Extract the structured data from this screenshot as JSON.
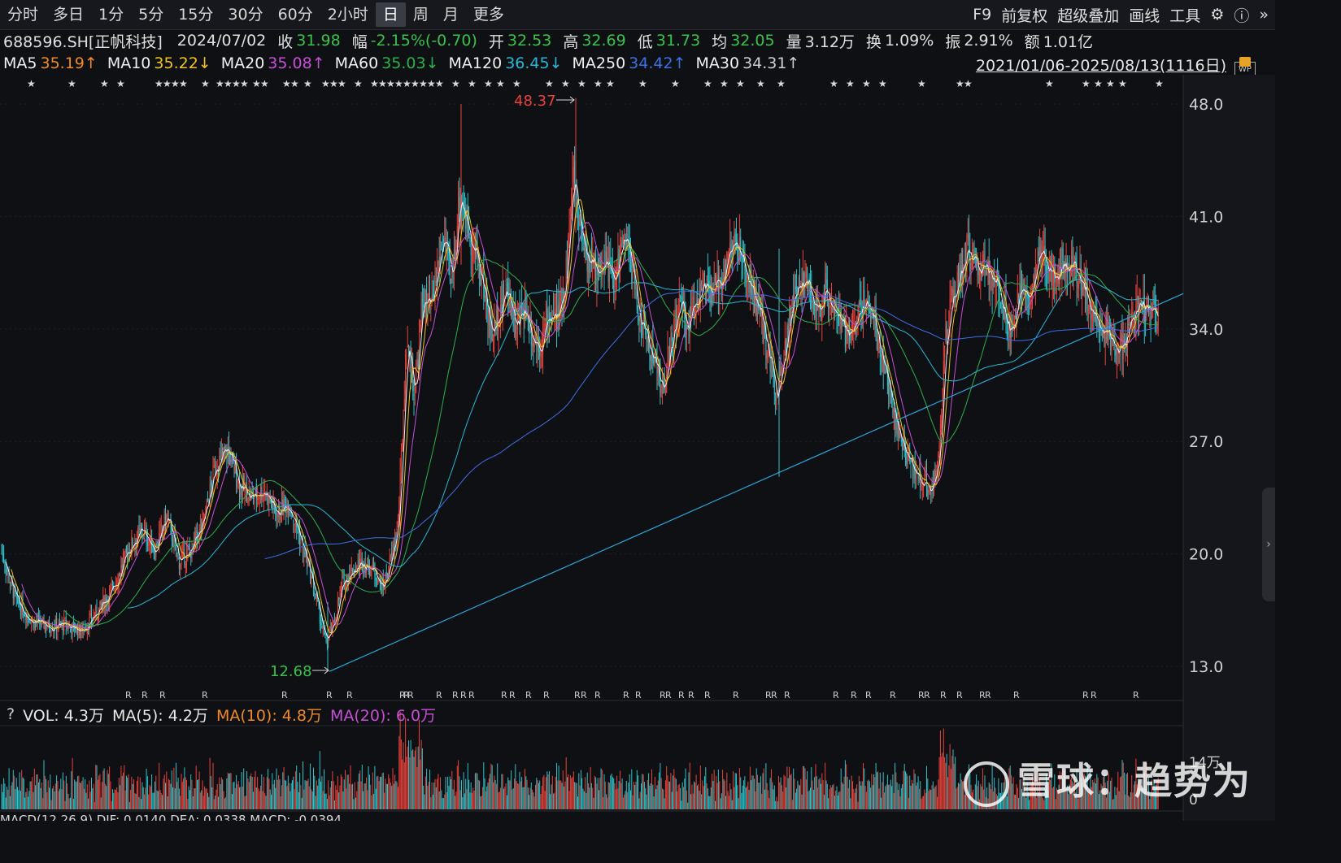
{
  "toolbar": {
    "tabs": [
      "分时",
      "多日",
      "1分",
      "5分",
      "15分",
      "30分",
      "60分",
      "2小时",
      "日",
      "周",
      "月",
      "更多"
    ],
    "active_tab": "日",
    "tools": [
      "F9",
      "前复权",
      "超级叠加",
      "画线",
      "工具"
    ]
  },
  "info": {
    "code": "688596.SH[正帆科技]",
    "date": "2024/07/02",
    "close_label": "收",
    "close": "31.98",
    "range_label": "幅",
    "range": "-2.15%(-0.70)",
    "open_label": "开",
    "open": "32.53",
    "high_label": "高",
    "high": "32.69",
    "low_label": "低",
    "low": "31.73",
    "avg_label": "均",
    "avg": "32.05",
    "vol_label": "量",
    "vol": "3.12万",
    "turnover_label": "换",
    "turnover": "1.09%",
    "amp_label": "振",
    "amp": "2.91%",
    "amount_label": "额",
    "amount": "1.01亿"
  },
  "ma": [
    {
      "name": "MA5",
      "value": "35.19↑",
      "color": "#f0f0f0",
      "vcolor": "#f08a24"
    },
    {
      "name": "MA10",
      "value": "35.22↓",
      "color": "#f0f0f0",
      "vcolor": "#f0c419"
    },
    {
      "name": "MA20",
      "value": "35.08↑",
      "color": "#f0f0f0",
      "vcolor": "#c74fd6"
    },
    {
      "name": "MA60",
      "value": "35.03↓",
      "color": "#f0f0f0",
      "vcolor": "#2bb04a"
    },
    {
      "name": "MA120",
      "value": "36.45↓",
      "color": "#f0f0f0",
      "vcolor": "#25b9d6"
    },
    {
      "name": "MA250",
      "value": "34.42↑",
      "color": "#f0f0f0",
      "vcolor": "#3d6fe6"
    },
    {
      "name": "MA30",
      "value": "34.31↑",
      "color": "#f0f0f0",
      "vcolor": "#d0d0d0"
    }
  ],
  "date_range": "2021/01/06-2025/08/13(1116日)",
  "volume_header": {
    "q": "?",
    "vol": "VOL: 4.3万",
    "ma5": "MA(5): 4.2万",
    "ma10": "MA(10): 4.8万",
    "ma20": "MA(20): 6.0万"
  },
  "macd_header": "MACD(12,26,9)  DIF: 0.0140  DEA: 0.0338  MACD: -0.0394",
  "watermark": "雪球：趋势为",
  "colors": {
    "up": "#e8433b",
    "down": "#2cc1c9",
    "bg": "#0f1014",
    "grid": "#2a2c33",
    "trend": "#2aa6d8"
  },
  "chart_data": {
    "type": "candlestick",
    "title": "",
    "yticks": [
      48.0,
      41.0,
      34.0,
      27.0,
      20.0,
      13.0
    ],
    "ylim": [
      11.5,
      50.0
    ],
    "volume_ticks": [
      "14万",
      "0"
    ],
    "max_label": "48.37",
    "min_label": "12.68",
    "close_path": [
      [
        0,
        20.5
      ],
      [
        20,
        17.0
      ],
      [
        40,
        15.8
      ],
      [
        60,
        15.5
      ],
      [
        80,
        15.6
      ],
      [
        100,
        15.2
      ],
      [
        120,
        16.4
      ],
      [
        140,
        18.0
      ],
      [
        160,
        20.5
      ],
      [
        175,
        21.5
      ],
      [
        190,
        20.2
      ],
      [
        205,
        22.3
      ],
      [
        220,
        19.5
      ],
      [
        235,
        20.2
      ],
      [
        250,
        22.0
      ],
      [
        265,
        25.5
      ],
      [
        280,
        26.5
      ],
      [
        295,
        24.2
      ],
      [
        310,
        23.5
      ],
      [
        325,
        24.0
      ],
      [
        340,
        22.5
      ],
      [
        355,
        23.2
      ],
      [
        370,
        20.8
      ],
      [
        385,
        18.0
      ],
      [
        400,
        14.5
      ],
      [
        410,
        15.5
      ],
      [
        420,
        18.0
      ],
      [
        430,
        18.8
      ],
      [
        445,
        19.5
      ],
      [
        460,
        19.0
      ],
      [
        470,
        17.8
      ],
      [
        480,
        19.5
      ],
      [
        490,
        22.0
      ],
      [
        500,
        33.5
      ],
      [
        510,
        30.0
      ],
      [
        520,
        36.0
      ],
      [
        530,
        35.0
      ],
      [
        545,
        40.0
      ],
      [
        555,
        36.5
      ],
      [
        565,
        42.5
      ],
      [
        575,
        40.5
      ],
      [
        585,
        38.5
      ],
      [
        595,
        36.5
      ],
      [
        605,
        33.5
      ],
      [
        615,
        35.5
      ],
      [
        625,
        36.5
      ],
      [
        635,
        34.0
      ],
      [
        645,
        35.5
      ],
      [
        655,
        33.5
      ],
      [
        665,
        33.0
      ],
      [
        675,
        35.0
      ],
      [
        685,
        34.5
      ],
      [
        695,
        37.0
      ],
      [
        705,
        43.5
      ],
      [
        715,
        40.0
      ],
      [
        725,
        38.0
      ],
      [
        735,
        37.5
      ],
      [
        745,
        38.5
      ],
      [
        755,
        36.5
      ],
      [
        765,
        39.5
      ],
      [
        775,
        38.5
      ],
      [
        785,
        35.0
      ],
      [
        795,
        33.5
      ],
      [
        805,
        32.0
      ],
      [
        815,
        30.0
      ],
      [
        825,
        33.0
      ],
      [
        835,
        35.5
      ],
      [
        845,
        34.0
      ],
      [
        855,
        36.0
      ],
      [
        865,
        36.5
      ],
      [
        875,
        36.0
      ],
      [
        885,
        37.0
      ],
      [
        895,
        38.5
      ],
      [
        905,
        39.5
      ],
      [
        915,
        37.5
      ],
      [
        925,
        36.5
      ],
      [
        935,
        34.5
      ],
      [
        945,
        32.5
      ],
      [
        955,
        30.0
      ],
      [
        965,
        33.0
      ],
      [
        975,
        35.5
      ],
      [
        985,
        37.0
      ],
      [
        995,
        36.5
      ],
      [
        1005,
        35.0
      ],
      [
        1015,
        36.5
      ],
      [
        1025,
        35.5
      ],
      [
        1035,
        34.0
      ],
      [
        1045,
        33.5
      ],
      [
        1055,
        35.0
      ],
      [
        1065,
        36.0
      ],
      [
        1075,
        34.5
      ],
      [
        1085,
        32.0
      ],
      [
        1095,
        30.0
      ],
      [
        1105,
        27.5
      ],
      [
        1115,
        26.0
      ],
      [
        1125,
        25.0
      ],
      [
        1135,
        24.5
      ],
      [
        1145,
        24.0
      ],
      [
        1155,
        26.0
      ],
      [
        1162,
        33.0
      ],
      [
        1170,
        35.5
      ],
      [
        1180,
        37.5
      ],
      [
        1190,
        39.0
      ],
      [
        1200,
        37.5
      ],
      [
        1210,
        38.0
      ],
      [
        1220,
        37.0
      ],
      [
        1230,
        36.5
      ],
      [
        1240,
        34.0
      ],
      [
        1250,
        35.5
      ],
      [
        1260,
        36.5
      ],
      [
        1270,
        36.5
      ],
      [
        1280,
        38.5
      ],
      [
        1290,
        38.0
      ],
      [
        1300,
        37.5
      ],
      [
        1310,
        38.5
      ],
      [
        1320,
        38.0
      ],
      [
        1330,
        37.0
      ],
      [
        1340,
        35.5
      ],
      [
        1350,
        34.5
      ],
      [
        1360,
        33.8
      ],
      [
        1370,
        33.0
      ],
      [
        1380,
        32.8
      ],
      [
        1390,
        34.0
      ],
      [
        1400,
        35.5
      ],
      [
        1410,
        35.2
      ],
      [
        1420,
        35.0
      ],
      [
        1425,
        35.1
      ]
    ],
    "trendline": [
      [
        405,
        12.68
      ],
      [
        1455,
        36.2
      ]
    ]
  }
}
